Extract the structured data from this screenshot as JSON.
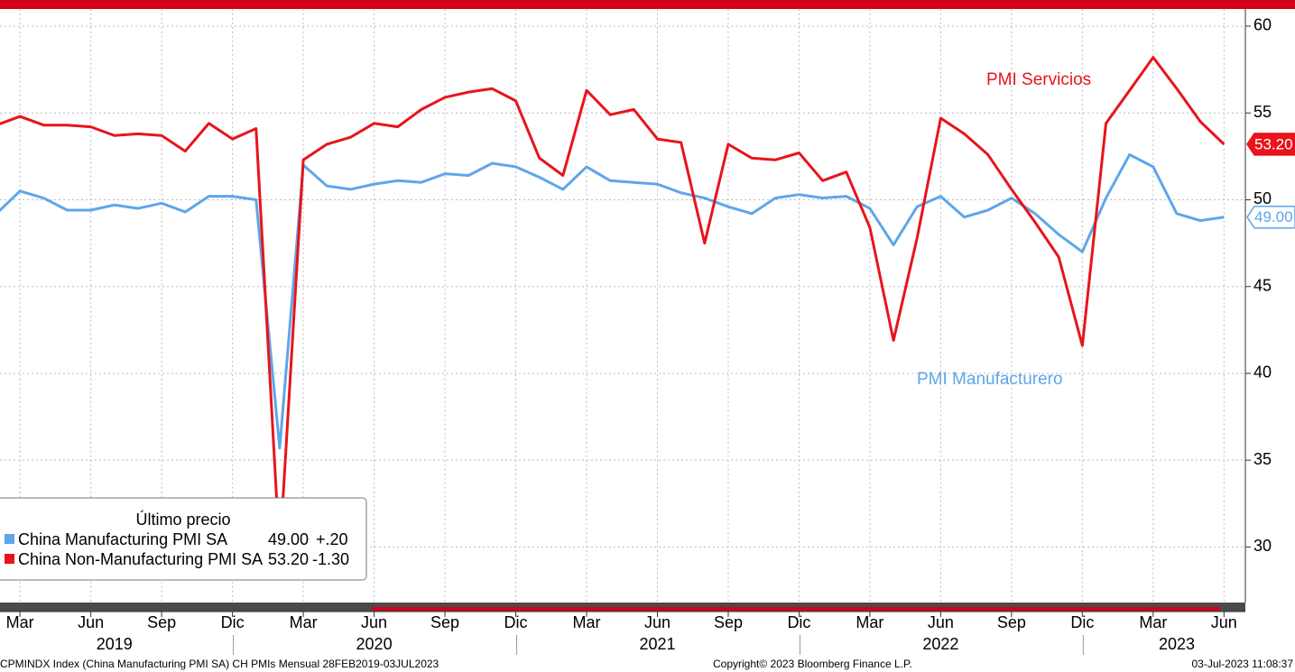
{
  "chart_data": {
    "type": "line",
    "x": [
      "2019-02",
      "2019-03",
      "2019-04",
      "2019-05",
      "2019-06",
      "2019-07",
      "2019-08",
      "2019-09",
      "2019-10",
      "2019-11",
      "2019-12",
      "2020-01",
      "2020-02",
      "2020-03",
      "2020-04",
      "2020-05",
      "2020-06",
      "2020-07",
      "2020-08",
      "2020-09",
      "2020-10",
      "2020-11",
      "2020-12",
      "2021-01",
      "2021-02",
      "2021-03",
      "2021-04",
      "2021-05",
      "2021-06",
      "2021-07",
      "2021-08",
      "2021-09",
      "2021-10",
      "2021-11",
      "2021-12",
      "2022-01",
      "2022-02",
      "2022-03",
      "2022-04",
      "2022-05",
      "2022-06",
      "2022-07",
      "2022-08",
      "2022-09",
      "2022-10",
      "2022-11",
      "2022-12",
      "2023-01",
      "2023-02",
      "2023-03",
      "2023-04",
      "2023-05",
      "2023-06"
    ],
    "series": [
      {
        "name": "China Manufacturing PMI SA",
        "color": "#5ea6ea",
        "last_label": "49.00",
        "change": "+.20",
        "values": [
          49.2,
          50.5,
          50.1,
          49.4,
          49.4,
          49.7,
          49.5,
          49.8,
          49.3,
          50.2,
          50.2,
          50.0,
          35.7,
          52.0,
          50.8,
          50.6,
          50.9,
          51.1,
          51.0,
          51.5,
          51.4,
          52.1,
          51.9,
          51.3,
          50.6,
          51.9,
          51.1,
          51.0,
          50.9,
          50.4,
          50.1,
          49.6,
          49.2,
          50.1,
          50.3,
          50.1,
          50.2,
          49.5,
          47.4,
          49.6,
          50.2,
          49.0,
          49.4,
          50.1,
          49.2,
          48.0,
          47.0,
          50.1,
          52.6,
          51.9,
          49.2,
          48.8,
          49.0
        ]
      },
      {
        "name": "China Non-Manufacturing PMI SA",
        "color": "#e8141c",
        "last_label": "53.20",
        "change": "-1.30",
        "values": [
          54.3,
          54.8,
          54.3,
          54.3,
          54.2,
          53.7,
          53.8,
          53.7,
          52.8,
          54.4,
          53.5,
          54.1,
          29.6,
          52.3,
          53.2,
          53.6,
          54.4,
          54.2,
          55.2,
          55.9,
          56.2,
          56.4,
          55.7,
          52.4,
          51.4,
          56.3,
          54.9,
          55.2,
          53.5,
          53.3,
          47.5,
          53.2,
          52.4,
          52.3,
          52.7,
          51.1,
          51.6,
          48.4,
          41.9,
          47.8,
          54.7,
          53.8,
          52.6,
          50.6,
          48.7,
          46.7,
          41.6,
          54.4,
          56.3,
          58.2,
          56.4,
          54.5,
          53.2
        ]
      }
    ],
    "ylim": [
      26.8,
      61
    ],
    "yticks": [
      30,
      35,
      40,
      45,
      50,
      55,
      60
    ],
    "xticks": [
      {
        "value": "2019-03",
        "label": "Mar"
      },
      {
        "value": "2019-06",
        "label": "Jun"
      },
      {
        "value": "2019-09",
        "label": "Sep"
      },
      {
        "value": "2019-12",
        "label": "Dic"
      },
      {
        "value": "2020-03",
        "label": "Mar"
      },
      {
        "value": "2020-06",
        "label": "Jun"
      },
      {
        "value": "2020-09",
        "label": "Sep"
      },
      {
        "value": "2020-12",
        "label": "Dic"
      },
      {
        "value": "2021-03",
        "label": "Mar"
      },
      {
        "value": "2021-06",
        "label": "Jun"
      },
      {
        "value": "2021-09",
        "label": "Sep"
      },
      {
        "value": "2021-12",
        "label": "Dic"
      },
      {
        "value": "2022-03",
        "label": "Mar"
      },
      {
        "value": "2022-06",
        "label": "Jun"
      },
      {
        "value": "2022-09",
        "label": "Sep"
      },
      {
        "value": "2022-12",
        "label": "Dic"
      },
      {
        "value": "2023-03",
        "label": "Mar"
      },
      {
        "value": "2023-06",
        "label": "Jun"
      }
    ],
    "year_ticks": [
      {
        "value": "2019-07",
        "label": "2019"
      },
      {
        "value": "2020-06",
        "label": "2020"
      },
      {
        "value": "2021-06",
        "label": "2021"
      },
      {
        "value": "2022-06",
        "label": "2022"
      },
      {
        "value": "2023-04",
        "label": "2023"
      }
    ],
    "grid": true,
    "legend_title": "Último precio",
    "annotations": [
      "PMI Servicios",
      "PMI Manufacturero"
    ],
    "footer": {
      "left": "CPMINDX Index (China Manufacturing PMI SA) CH PMIs  Mensual 28FEB2019-03JUL2023",
      "center": "Copyright© 2023 Bloomberg Finance L.P.",
      "right": "03-Jul-2023 11:08:37"
    }
  }
}
